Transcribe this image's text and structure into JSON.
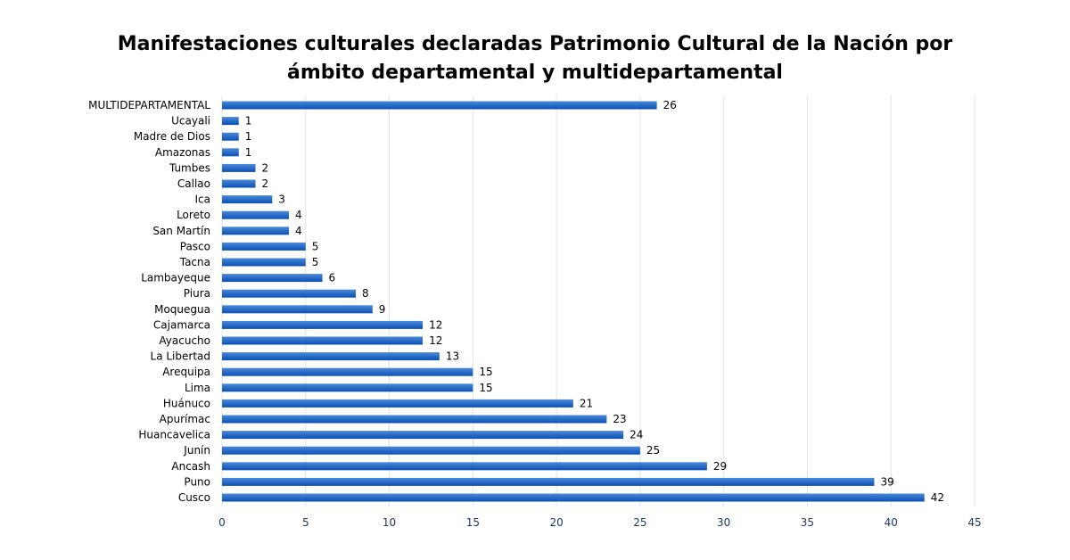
{
  "chart_data": {
    "type": "bar",
    "orientation": "horizontal",
    "title_lines": [
      "Manifestaciones culturales declaradas Patrimonio Cultural de la Nación por",
      "ámbito departamental y multidepartamental"
    ],
    "categories": [
      "MULTIDEPARTAMENTAL",
      "Ucayali",
      "Madre de Dios",
      "Amazonas",
      "Tumbes",
      "Callao",
      "Ica",
      "Loreto",
      "San Martín",
      "Pasco",
      "Tacna",
      "Lambayeque",
      "Piura",
      "Moquegua",
      "Cajamarca",
      "Ayacucho",
      "La Libertad",
      "Arequipa",
      "Lima",
      "Huánuco",
      "Apurímac",
      "Huancavelica",
      "Junín",
      "Ancash",
      "Puno",
      "Cusco"
    ],
    "values": [
      26,
      1,
      1,
      1,
      2,
      2,
      3,
      4,
      4,
      5,
      5,
      6,
      8,
      9,
      12,
      12,
      13,
      15,
      15,
      21,
      23,
      24,
      25,
      29,
      39,
      42
    ],
    "xlim": [
      0,
      45
    ],
    "xticks": [
      0,
      5,
      10,
      15,
      20,
      25,
      30,
      35,
      40,
      45
    ],
    "grid": "vertical",
    "data_labels": true,
    "legend": "none",
    "colors": {
      "bar_top": "#4a8ad8",
      "bar_bottom": "#0b4fb5",
      "grid": "#e3e3e3",
      "tick": "#1f3864"
    }
  }
}
